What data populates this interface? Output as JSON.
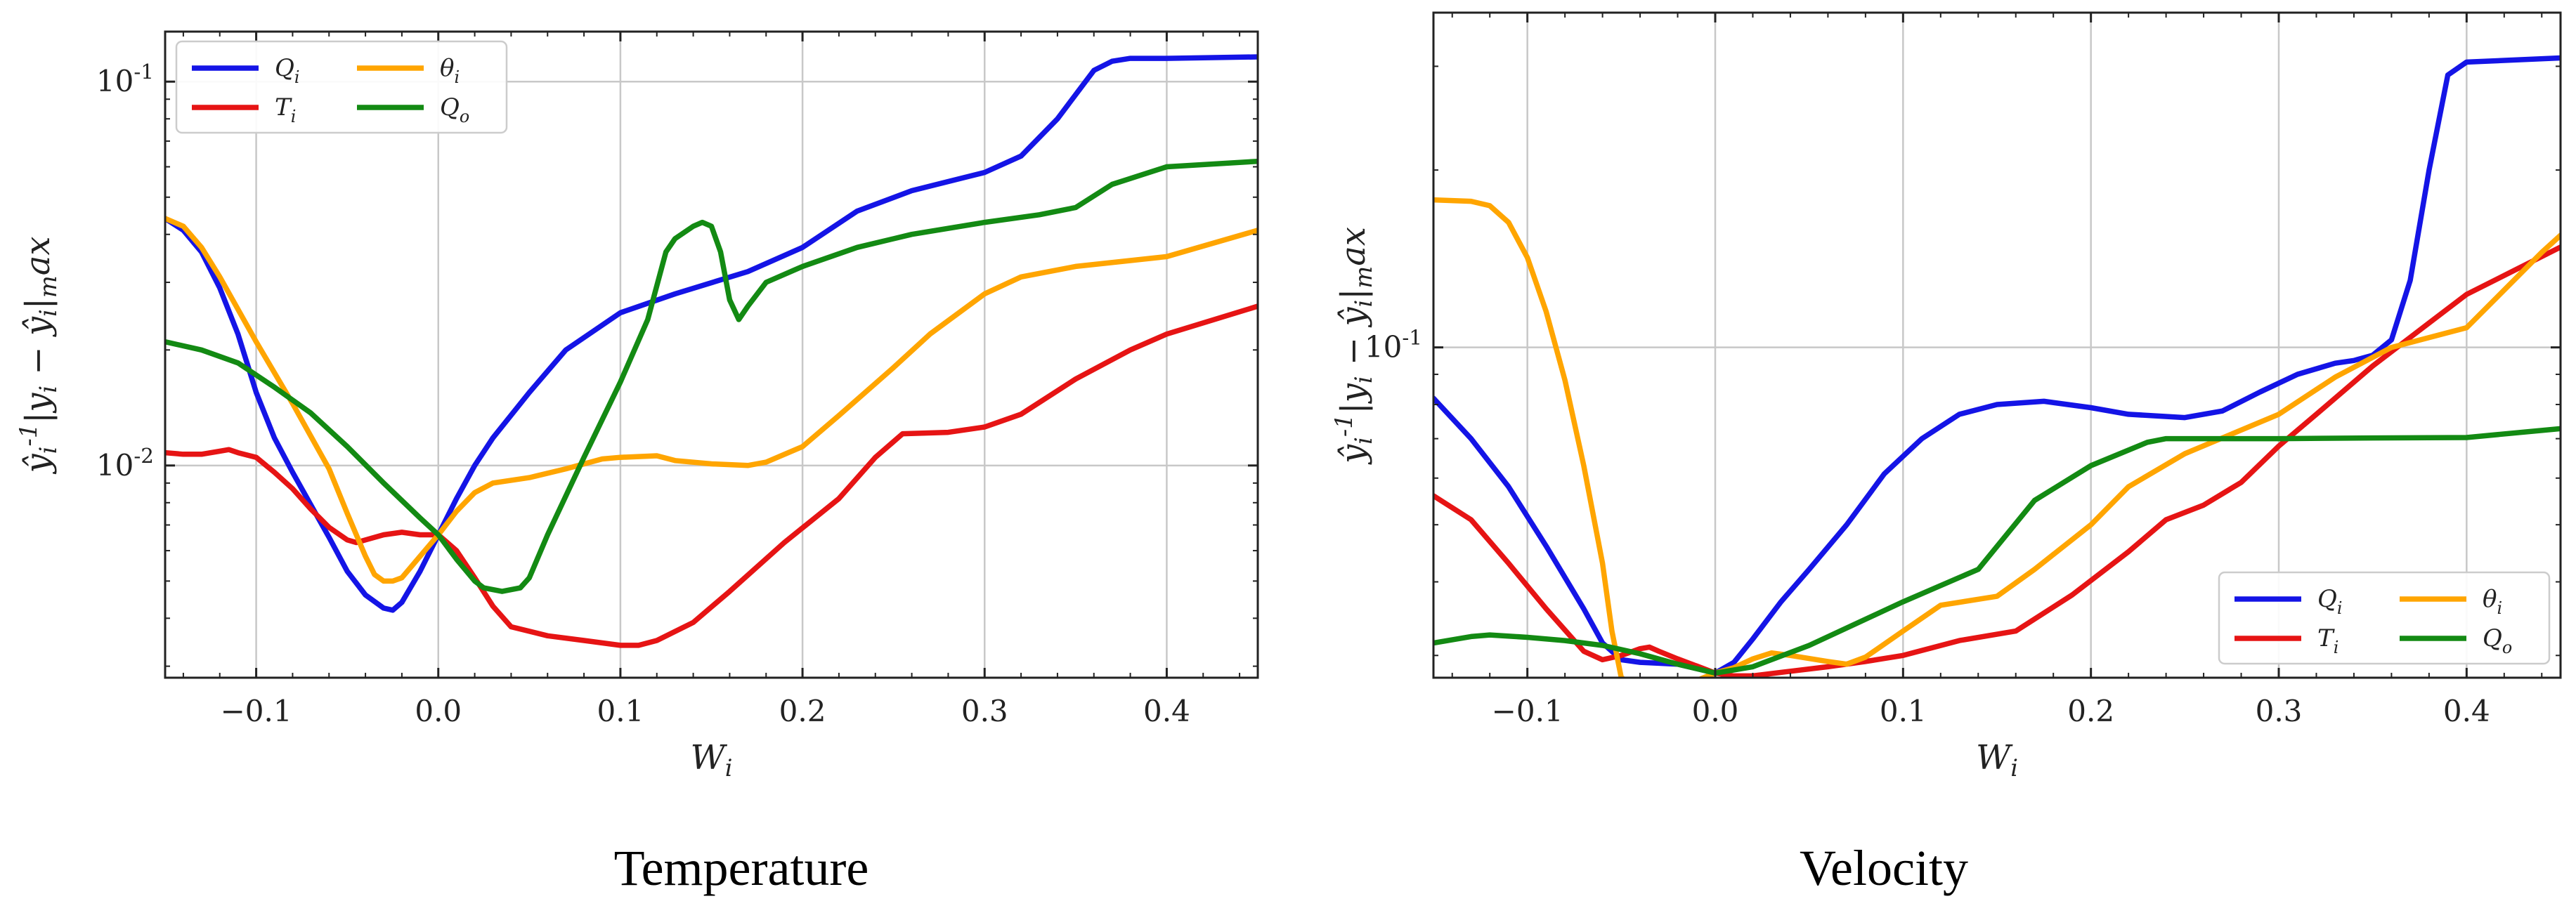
{
  "chart_data": [
    {
      "type": "line",
      "title": "Temperature",
      "xlabel": "W_i",
      "ylabel": "ŷ_i^{-1}|y_i − ŷ_i|_max",
      "yscale": "log",
      "xlim": [
        -0.15,
        0.45
      ],
      "ylim": [
        0.0028,
        0.135
      ],
      "xticks": [
        -0.1,
        0.0,
        0.1,
        0.2,
        0.3,
        0.4
      ],
      "xtick_labels": [
        "−0.1",
        "0.0",
        "0.1",
        "0.2",
        "0.3",
        "0.4"
      ],
      "yticks": [
        0.01,
        0.1
      ],
      "ytick_labels": [
        "10^{-2}",
        "10^{-1}"
      ],
      "grid": true,
      "legend": "top-left",
      "series": [
        {
          "name": "Q_i",
          "color": "#1414e6",
          "x": [
            -0.15,
            -0.14,
            -0.13,
            -0.12,
            -0.11,
            -0.1,
            -0.09,
            -0.08,
            -0.07,
            -0.06,
            -0.05,
            -0.04,
            -0.03,
            -0.025,
            -0.02,
            -0.01,
            0.0,
            0.01,
            0.02,
            0.03,
            0.05,
            0.07,
            0.1,
            0.13,
            0.17,
            0.2,
            0.23,
            0.26,
            0.3,
            0.32,
            0.34,
            0.36,
            0.37,
            0.38,
            0.4,
            0.45
          ],
          "y": [
            0.044,
            0.041,
            0.036,
            0.029,
            0.022,
            0.0155,
            0.0118,
            0.0096,
            0.0079,
            0.0065,
            0.0053,
            0.0046,
            0.00425,
            0.0042,
            0.0044,
            0.0053,
            0.0066,
            0.0082,
            0.01,
            0.0118,
            0.0155,
            0.02,
            0.025,
            0.028,
            0.032,
            0.037,
            0.046,
            0.052,
            0.058,
            0.064,
            0.08,
            0.107,
            0.113,
            0.115,
            0.115,
            0.116
          ]
        },
        {
          "name": "T_i",
          "color": "#e61414",
          "x": [
            -0.15,
            -0.14,
            -0.13,
            -0.12,
            -0.115,
            -0.11,
            -0.1,
            -0.09,
            -0.08,
            -0.07,
            -0.06,
            -0.05,
            -0.045,
            -0.04,
            -0.03,
            -0.02,
            -0.01,
            0.0,
            0.01,
            0.02,
            0.03,
            0.04,
            0.06,
            0.08,
            0.1,
            0.11,
            0.12,
            0.14,
            0.16,
            0.19,
            0.22,
            0.24,
            0.255,
            0.28,
            0.3,
            0.32,
            0.35,
            0.38,
            0.4,
            0.45
          ],
          "y": [
            0.0108,
            0.0107,
            0.0107,
            0.0109,
            0.011,
            0.0108,
            0.0105,
            0.0096,
            0.0087,
            0.0077,
            0.0069,
            0.0064,
            0.0063,
            0.0064,
            0.0066,
            0.0067,
            0.0066,
            0.0066,
            0.006,
            0.0051,
            0.0043,
            0.0038,
            0.0036,
            0.0035,
            0.0034,
            0.0034,
            0.0035,
            0.0039,
            0.0047,
            0.0063,
            0.0082,
            0.0105,
            0.0121,
            0.0122,
            0.0126,
            0.0136,
            0.0168,
            0.02,
            0.022,
            0.026
          ]
        },
        {
          "name": "θ_i",
          "color": "#ffa500",
          "x": [
            -0.15,
            -0.14,
            -0.13,
            -0.12,
            -0.1,
            -0.08,
            -0.06,
            -0.05,
            -0.04,
            -0.035,
            -0.03,
            -0.025,
            -0.02,
            -0.01,
            0.0,
            0.01,
            0.02,
            0.03,
            0.05,
            0.07,
            0.09,
            0.1,
            0.12,
            0.13,
            0.15,
            0.17,
            0.18,
            0.2,
            0.22,
            0.25,
            0.27,
            0.3,
            0.32,
            0.35,
            0.4,
            0.45
          ],
          "y": [
            0.044,
            0.042,
            0.037,
            0.031,
            0.021,
            0.0145,
            0.0098,
            0.0075,
            0.0058,
            0.0052,
            0.005,
            0.005,
            0.0051,
            0.0058,
            0.0066,
            0.0076,
            0.0085,
            0.009,
            0.0093,
            0.0098,
            0.0104,
            0.0105,
            0.0106,
            0.0103,
            0.0101,
            0.01,
            0.0102,
            0.0112,
            0.0135,
            0.018,
            0.022,
            0.028,
            0.031,
            0.033,
            0.035,
            0.041
          ]
        },
        {
          "name": "Q_o",
          "color": "#138a13",
          "x": [
            -0.15,
            -0.13,
            -0.11,
            -0.09,
            -0.07,
            -0.05,
            -0.03,
            -0.01,
            0.0,
            0.01,
            0.02,
            0.025,
            0.035,
            0.045,
            0.05,
            0.06,
            0.08,
            0.1,
            0.115,
            0.125,
            0.13,
            0.14,
            0.145,
            0.15,
            0.155,
            0.16,
            0.165,
            0.17,
            0.18,
            0.2,
            0.23,
            0.26,
            0.3,
            0.33,
            0.35,
            0.37,
            0.4,
            0.45
          ],
          "y": [
            0.021,
            0.02,
            0.0185,
            0.016,
            0.0137,
            0.0112,
            0.009,
            0.0073,
            0.0066,
            0.0057,
            0.005,
            0.0048,
            0.0047,
            0.0048,
            0.0051,
            0.0066,
            0.0105,
            0.0165,
            0.024,
            0.036,
            0.039,
            0.042,
            0.043,
            0.042,
            0.036,
            0.027,
            0.024,
            0.026,
            0.03,
            0.033,
            0.037,
            0.04,
            0.043,
            0.045,
            0.047,
            0.054,
            0.06,
            0.062
          ]
        }
      ]
    },
    {
      "type": "line",
      "title": "Velocity",
      "xlabel": "W_i",
      "ylabel": "ŷ_i^{-1}|y_i − ŷ_i|_max",
      "yscale": "log",
      "xlim": [
        -0.15,
        0.45
      ],
      "ylim": [
        0.0275,
        0.37
      ],
      "xticks": [
        -0.1,
        0.0,
        0.1,
        0.2,
        0.3,
        0.4
      ],
      "xtick_labels": [
        "−0.1",
        "0.0",
        "0.1",
        "0.2",
        "0.3",
        "0.4"
      ],
      "yticks": [
        0.1
      ],
      "ytick_labels": [
        "10^{-1}"
      ],
      "grid": true,
      "legend": "bottom-right",
      "series": [
        {
          "name": "Q_i",
          "color": "#1414e6",
          "x": [
            -0.15,
            -0.13,
            -0.11,
            -0.09,
            -0.07,
            -0.06,
            -0.05,
            -0.04,
            -0.03,
            -0.02,
            -0.01,
            0.0,
            0.01,
            0.02,
            0.035,
            0.05,
            0.07,
            0.09,
            0.11,
            0.13,
            0.15,
            0.175,
            0.2,
            0.22,
            0.25,
            0.27,
            0.29,
            0.31,
            0.33,
            0.34,
            0.35,
            0.36,
            0.37,
            0.38,
            0.39,
            0.4,
            0.45
          ],
          "y": [
            0.082,
            0.07,
            0.058,
            0.046,
            0.036,
            0.0315,
            0.0295,
            0.0292,
            0.0291,
            0.029,
            0.0285,
            0.028,
            0.0292,
            0.032,
            0.037,
            0.042,
            0.05,
            0.061,
            0.07,
            0.077,
            0.08,
            0.081,
            0.079,
            0.077,
            0.076,
            0.078,
            0.084,
            0.09,
            0.094,
            0.095,
            0.097,
            0.103,
            0.13,
            0.2,
            0.29,
            0.305,
            0.31
          ]
        },
        {
          "name": "T_i",
          "color": "#e61414",
          "x": [
            -0.15,
            -0.13,
            -0.11,
            -0.09,
            -0.07,
            -0.06,
            -0.05,
            -0.04,
            -0.035,
            -0.03,
            -0.02,
            -0.01,
            0.0,
            0.01,
            0.02,
            0.04,
            0.06,
            0.08,
            0.1,
            0.13,
            0.16,
            0.19,
            0.22,
            0.24,
            0.26,
            0.28,
            0.3,
            0.32,
            0.35,
            0.38,
            0.4,
            0.45
          ],
          "y": [
            0.056,
            0.051,
            0.043,
            0.036,
            0.0305,
            0.0295,
            0.03,
            0.0308,
            0.031,
            0.0305,
            0.0296,
            0.0288,
            0.028,
            0.0277,
            0.0277,
            0.0282,
            0.0287,
            0.0293,
            0.03,
            0.0318,
            0.033,
            0.038,
            0.045,
            0.051,
            0.054,
            0.059,
            0.068,
            0.077,
            0.093,
            0.11,
            0.123,
            0.148
          ]
        },
        {
          "name": "θ_i",
          "color": "#ffa500",
          "x": [
            -0.15,
            -0.13,
            -0.12,
            -0.11,
            -0.1,
            -0.09,
            -0.08,
            -0.07,
            -0.06,
            -0.055,
            -0.05,
            -0.04,
            -0.03,
            -0.02,
            -0.01,
            0.0,
            0.01,
            0.02,
            0.03,
            0.04,
            0.06,
            0.07,
            0.08,
            0.1,
            0.12,
            0.15,
            0.17,
            0.2,
            0.22,
            0.25,
            0.3,
            0.33,
            0.36,
            0.4,
            0.44,
            0.45
          ],
          "y": [
            0.178,
            0.177,
            0.174,
            0.163,
            0.142,
            0.115,
            0.088,
            0.063,
            0.043,
            0.033,
            0.0275,
            0.0264,
            0.0262,
            0.0265,
            0.0272,
            0.028,
            0.0286,
            0.0296,
            0.0303,
            0.03,
            0.0293,
            0.029,
            0.0298,
            0.033,
            0.0365,
            0.0378,
            0.042,
            0.05,
            0.058,
            0.066,
            0.077,
            0.089,
            0.1,
            0.108,
            0.145,
            0.155
          ]
        },
        {
          "name": "Q_o",
          "color": "#138a13",
          "x": [
            -0.15,
            -0.13,
            -0.12,
            -0.1,
            -0.08,
            -0.06,
            -0.04,
            -0.02,
            0.0,
            0.02,
            0.05,
            0.1,
            0.14,
            0.17,
            0.2,
            0.23,
            0.24,
            0.25,
            0.3,
            0.35,
            0.4,
            0.45
          ],
          "y": [
            0.0315,
            0.0323,
            0.0325,
            0.0322,
            0.0318,
            0.0312,
            0.0302,
            0.029,
            0.028,
            0.0287,
            0.0312,
            0.037,
            0.042,
            0.055,
            0.063,
            0.069,
            0.07,
            0.07,
            0.07,
            0.0702,
            0.0703,
            0.0728
          ]
        }
      ]
    }
  ]
}
